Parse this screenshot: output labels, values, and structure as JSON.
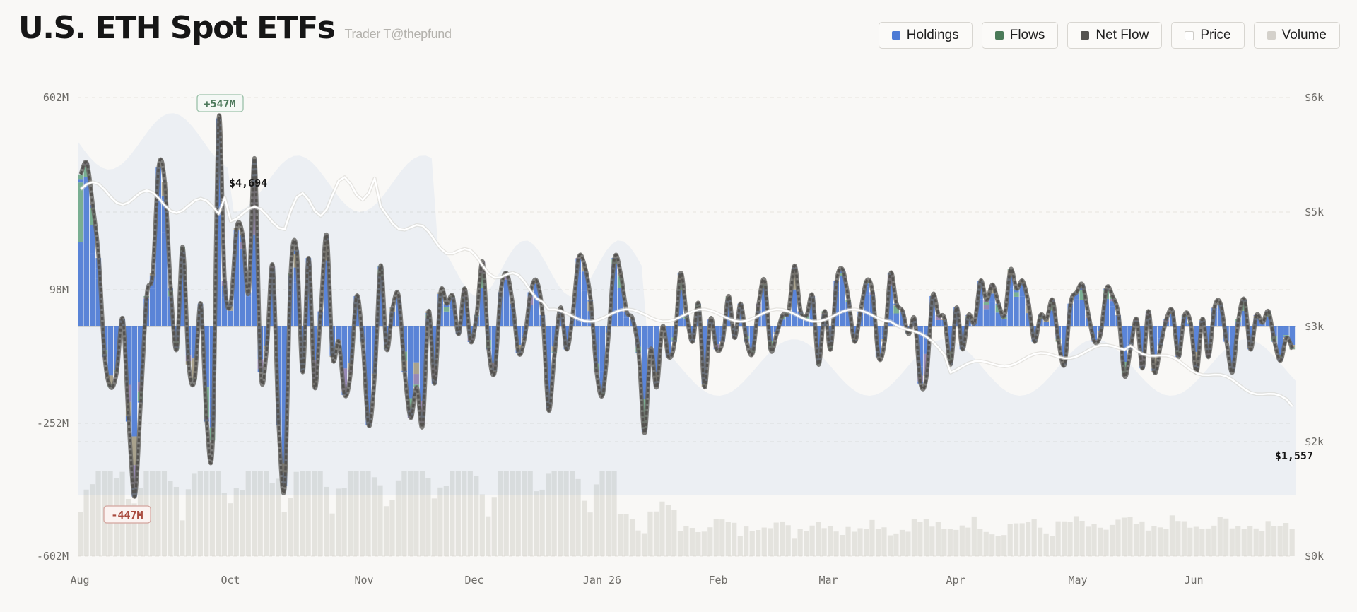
{
  "header": {
    "title": "U.S. ETH Spot ETFs",
    "subtitle": "Trader T@thepfund"
  },
  "legend": [
    {
      "label": "Holdings",
      "color": "#4d7bd5"
    },
    {
      "label": "Flows",
      "color": "#4a7a58"
    },
    {
      "label": "Net Flow",
      "color": "#555350"
    },
    {
      "label": "Price",
      "color": "#ffffff"
    },
    {
      "label": "Volume",
      "color": "#d4d1cb"
    }
  ],
  "chart_data": {
    "type": "bar",
    "title": "U.S. ETH Spot ETFs",
    "left_axis": {
      "ticks": [
        "602M",
        "98M",
        "-252M",
        "-602M"
      ],
      "values": [
        602,
        98,
        -252,
        -602
      ],
      "range": [
        -602,
        602
      ],
      "unit": "USD millions"
    },
    "right_axis": {
      "ticks": [
        "$6k",
        "$5k",
        "$3k",
        "$2k",
        "$0k"
      ],
      "values": [
        6000,
        5000,
        3000,
        2000,
        0
      ],
      "unit": "USD"
    },
    "x_labels": [
      "Aug",
      "Oct",
      "Nov",
      "Dec",
      "Jan 26",
      "Feb",
      "Mar",
      "Apr",
      "May",
      "Jun"
    ],
    "annotations": {
      "max_flow": "+547M",
      "min_flow": "-447M",
      "price_high": "$4,694",
      "price_last": "$1,557"
    },
    "series_colors": {
      "holdings": "#4d7bd5",
      "flows": "#6fa88a",
      "net_flow": "#555350",
      "price": "#ffffff",
      "volume": "#d4d1cb",
      "extra_1": "#8e7fb0",
      "extra_2": "#a39b84"
    },
    "net_flow": [
      400,
      430,
      320,
      180,
      -80,
      -160,
      -120,
      20,
      -250,
      -447,
      -200,
      80,
      140,
      420,
      380,
      100,
      -60,
      210,
      -100,
      -140,
      60,
      -250,
      -300,
      547,
      120,
      60,
      260,
      240,
      90,
      440,
      -120,
      -60,
      160,
      -260,
      -420,
      140,
      200,
      -120,
      180,
      -160,
      40,
      240,
      -80,
      -40,
      -180,
      -120,
      80,
      -40,
      -260,
      -130,
      160,
      -60,
      50,
      80,
      -120,
      -240,
      -160,
      -260,
      40,
      -150,
      90,
      60,
      80,
      -20,
      100,
      -40,
      30,
      170,
      -60,
      -120,
      90,
      140,
      60,
      -70,
      -30,
      90,
      120,
      30,
      -220,
      -70,
      50,
      -60,
      30,
      180,
      160,
      70,
      -120,
      -180,
      -20,
      180,
      140,
      40,
      20,
      -70,
      -280,
      -60,
      -160,
      0,
      -80,
      -40,
      140,
      30,
      -40,
      60,
      -160,
      20,
      -60,
      -40,
      80,
      -30,
      60,
      -40,
      -70,
      60,
      120,
      -60,
      -20,
      30,
      40,
      160,
      40,
      30,
      80,
      -100,
      40,
      -60,
      120,
      150,
      70,
      -40,
      40,
      120,
      90,
      -80,
      -40,
      140,
      60,
      40,
      -20,
      20,
      -150,
      -130,
      80,
      30,
      20,
      -100,
      50,
      -60,
      30,
      10,
      120,
      70,
      110,
      60,
      30,
      150,
      100,
      120,
      60,
      -40,
      30,
      20,
      70,
      -40,
      -100,
      60,
      90,
      110,
      30,
      -40,
      -20,
      100,
      80,
      30,
      -130,
      -60,
      20,
      -110,
      40,
      -120,
      -50,
      20,
      40,
      -80,
      30,
      10,
      -120,
      20,
      -80,
      50,
      60,
      -40,
      -120,
      20,
      70,
      -60,
      30,
      10,
      40,
      -40,
      -90,
      -30,
      -60
    ]
  }
}
